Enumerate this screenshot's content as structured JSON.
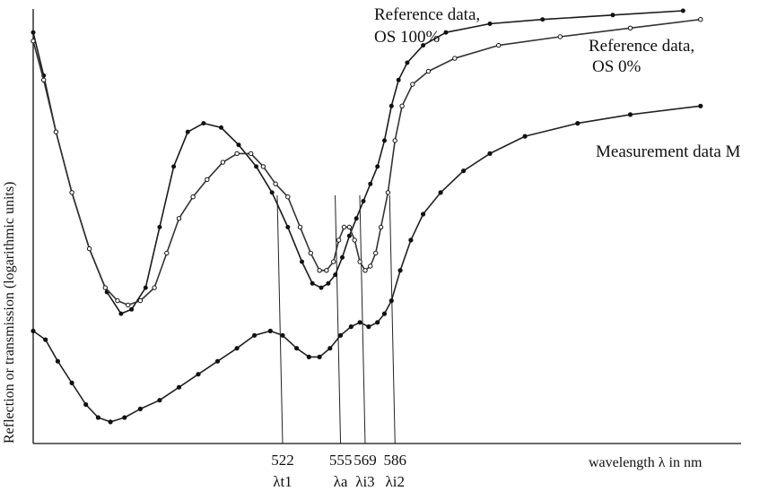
{
  "chart_data": {
    "type": "line",
    "title": "",
    "xlabel": "wavelength λ in nm",
    "ylabel": "Reflection or transmission (logarithmic units)",
    "xlim": [
      380,
      780
    ],
    "ylim": [
      0,
      100
    ],
    "grid": false,
    "legend": "inline labels at curve ends",
    "marker_lines": [
      {
        "x": 522,
        "tick": "522",
        "symbol": "λt1"
      },
      {
        "x": 555,
        "tick": "555",
        "symbol": "λa"
      },
      {
        "x": 569,
        "tick": "569",
        "symbol": "λi3"
      },
      {
        "x": 586,
        "tick": "586",
        "symbol": "λi2"
      }
    ],
    "series": [
      {
        "name": "Reference data, OS 100%",
        "label_lines": [
          "Reference data,",
          "OS 100%"
        ],
        "points": [
          [
            380,
            95
          ],
          [
            386,
            85
          ],
          [
            393,
            72
          ],
          [
            402,
            58
          ],
          [
            412,
            45
          ],
          [
            422,
            35
          ],
          [
            430,
            30
          ],
          [
            436,
            31
          ],
          [
            444,
            36
          ],
          [
            452,
            50
          ],
          [
            460,
            64
          ],
          [
            468,
            72
          ],
          [
            477,
            74
          ],
          [
            487,
            73
          ],
          [
            497,
            69
          ],
          [
            507,
            64
          ],
          [
            516,
            58
          ],
          [
            525,
            50
          ],
          [
            533,
            42
          ],
          [
            539,
            37
          ],
          [
            544,
            36
          ],
          [
            548,
            37
          ],
          [
            552,
            39
          ],
          [
            556,
            43
          ],
          [
            560,
            48
          ],
          [
            564,
            52
          ],
          [
            568,
            56
          ],
          [
            572,
            60
          ],
          [
            576,
            64
          ],
          [
            580,
            70
          ],
          [
            584,
            78
          ],
          [
            588,
            84
          ],
          [
            593,
            88
          ],
          [
            602,
            92
          ],
          [
            615,
            95
          ],
          [
            640,
            97
          ],
          [
            670,
            98
          ],
          [
            710,
            99
          ],
          [
            750,
            100
          ]
        ]
      },
      {
        "name": "Reference data, OS 0%",
        "label_lines": [
          "Reference data,",
          "OS 0%"
        ],
        "points": [
          [
            380,
            93
          ],
          [
            386,
            84
          ],
          [
            393,
            72
          ],
          [
            402,
            58
          ],
          [
            412,
            45
          ],
          [
            421,
            36
          ],
          [
            428,
            33
          ],
          [
            434,
            32
          ],
          [
            441,
            33
          ],
          [
            449,
            36
          ],
          [
            456,
            44
          ],
          [
            463,
            52
          ],
          [
            471,
            57
          ],
          [
            479,
            61
          ],
          [
            488,
            65
          ],
          [
            496,
            67
          ],
          [
            504,
            67
          ],
          [
            511,
            64
          ],
          [
            518,
            60
          ],
          [
            525,
            57
          ],
          [
            532,
            50
          ],
          [
            538,
            44
          ],
          [
            543,
            40
          ],
          [
            547,
            40
          ],
          [
            551,
            42
          ],
          [
            554,
            47
          ],
          [
            557,
            50
          ],
          [
            560,
            50
          ],
          [
            563,
            47
          ],
          [
            566,
            42
          ],
          [
            569,
            40
          ],
          [
            572,
            41
          ],
          [
            575,
            44
          ],
          [
            578,
            50
          ],
          [
            582,
            58
          ],
          [
            586,
            70
          ],
          [
            590,
            78
          ],
          [
            596,
            83
          ],
          [
            605,
            86
          ],
          [
            620,
            89
          ],
          [
            645,
            92
          ],
          [
            680,
            94
          ],
          [
            720,
            96
          ],
          [
            760,
            98
          ]
        ]
      },
      {
        "name": "Measurement data M",
        "label_lines": [
          "Measurement data M"
        ],
        "points": [
          [
            380,
            26
          ],
          [
            387,
            24
          ],
          [
            394,
            19
          ],
          [
            402,
            14
          ],
          [
            410,
            9
          ],
          [
            417,
            6
          ],
          [
            424,
            5
          ],
          [
            432,
            6
          ],
          [
            441,
            8
          ],
          [
            452,
            10
          ],
          [
            463,
            13
          ],
          [
            474,
            16
          ],
          [
            485,
            19
          ],
          [
            496,
            22
          ],
          [
            506,
            25
          ],
          [
            515,
            26
          ],
          [
            522,
            25
          ],
          [
            530,
            22
          ],
          [
            537,
            20
          ],
          [
            543,
            20
          ],
          [
            549,
            22
          ],
          [
            555,
            25
          ],
          [
            561,
            27
          ],
          [
            566,
            28
          ],
          [
            571,
            27
          ],
          [
            576,
            28
          ],
          [
            580,
            30
          ],
          [
            584,
            33
          ],
          [
            589,
            40
          ],
          [
            595,
            47
          ],
          [
            602,
            53
          ],
          [
            612,
            58
          ],
          [
            625,
            63
          ],
          [
            640,
            67
          ],
          [
            660,
            71
          ],
          [
            690,
            74
          ],
          [
            720,
            76
          ],
          [
            760,
            78
          ]
        ]
      }
    ]
  }
}
